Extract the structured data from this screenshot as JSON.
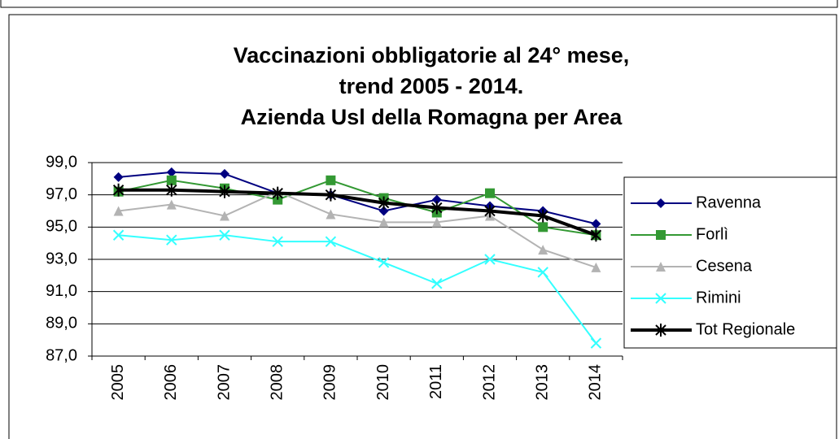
{
  "chart_data": {
    "type": "line",
    "title": [
      "Vaccinazioni obbligatorie al 24° mese,",
      "trend 2005 - 2014.",
      "Azienda Usl della Romagna per Area"
    ],
    "categories": [
      "2005",
      "2006",
      "2007",
      "2008",
      "2009",
      "2010",
      "2011",
      "2012",
      "2013",
      "2014"
    ],
    "series": [
      {
        "name": "Ravenna",
        "color": "#000080",
        "marker": "diamond",
        "values": [
          98.1,
          98.4,
          98.3,
          97.1,
          97.0,
          96.0,
          96.7,
          96.3,
          96.0,
          95.2
        ]
      },
      {
        "name": "Forlì",
        "color": "#339933",
        "marker": "square",
        "values": [
          97.2,
          97.9,
          97.4,
          96.7,
          97.9,
          96.8,
          95.9,
          97.1,
          95.0,
          94.5
        ]
      },
      {
        "name": "Cesena",
        "color": "#b3b3b3",
        "marker": "triangle",
        "values": [
          96.0,
          96.4,
          95.7,
          97.2,
          95.8,
          95.3,
          95.3,
          95.7,
          93.6,
          92.5
        ]
      },
      {
        "name": "Rimini",
        "color": "#33ffff",
        "marker": "x",
        "values": [
          94.5,
          94.2,
          94.5,
          94.1,
          94.1,
          92.8,
          91.5,
          93.0,
          92.2,
          87.8
        ]
      },
      {
        "name": "Tot Regionale",
        "color": "#000000",
        "marker": "star",
        "values": [
          97.3,
          97.3,
          97.2,
          97.1,
          97.0,
          96.5,
          96.2,
          96.0,
          95.7,
          94.5
        ]
      }
    ],
    "ylim": [
      87,
      99
    ],
    "yticks": [
      {
        "value": 87,
        "label": "87,0"
      },
      {
        "value": 89,
        "label": "89,0"
      },
      {
        "value": 91,
        "label": "91,0"
      },
      {
        "value": 93,
        "label": "93,0"
      },
      {
        "value": 95,
        "label": "95,0"
      },
      {
        "value": 97,
        "label": "97,0"
      },
      {
        "value": 99,
        "label": "99,0"
      }
    ],
    "grid": true,
    "legend": "right"
  }
}
